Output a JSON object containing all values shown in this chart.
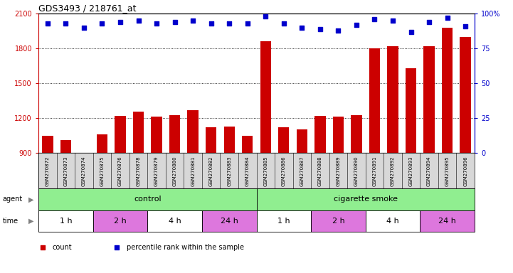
{
  "title": "GDS3493 / 218761_at",
  "samples": [
    "GSM270872",
    "GSM270873",
    "GSM270874",
    "GSM270875",
    "GSM270876",
    "GSM270878",
    "GSM270879",
    "GSM270880",
    "GSM270881",
    "GSM270882",
    "GSM270883",
    "GSM270884",
    "GSM270885",
    "GSM270886",
    "GSM270887",
    "GSM270888",
    "GSM270889",
    "GSM270890",
    "GSM270891",
    "GSM270892",
    "GSM270893",
    "GSM270894",
    "GSM270895",
    "GSM270896"
  ],
  "counts": [
    1050,
    1010,
    870,
    1060,
    1220,
    1255,
    1210,
    1225,
    1270,
    1120,
    1130,
    1050,
    1860,
    1120,
    1100,
    1220,
    1210,
    1225,
    1800,
    1820,
    1630,
    1820,
    1980,
    1900
  ],
  "percentiles": [
    93,
    93,
    90,
    93,
    94,
    95,
    93,
    94,
    95,
    93,
    93,
    93,
    98,
    93,
    90,
    89,
    88,
    92,
    96,
    95,
    87,
    94,
    97,
    91
  ],
  "bar_color": "#cc0000",
  "dot_color": "#0000cc",
  "ylim_left": [
    900,
    2100
  ],
  "ylim_right": [
    0,
    100
  ],
  "yticks_left": [
    900,
    1200,
    1500,
    1800,
    2100
  ],
  "yticks_right": [
    0,
    25,
    50,
    75,
    100
  ],
  "ytick_labels_right": [
    "0",
    "25",
    "50",
    "75",
    "100%"
  ],
  "time_groups": [
    {
      "label": "1 h",
      "start": 0,
      "end": 2,
      "color": "#ffffff"
    },
    {
      "label": "2 h",
      "start": 3,
      "end": 5,
      "color": "#dd77dd"
    },
    {
      "label": "4 h",
      "start": 6,
      "end": 8,
      "color": "#ffffff"
    },
    {
      "label": "24 h",
      "start": 9,
      "end": 11,
      "color": "#dd77dd"
    },
    {
      "label": "1 h",
      "start": 12,
      "end": 14,
      "color": "#ffffff"
    },
    {
      "label": "2 h",
      "start": 15,
      "end": 17,
      "color": "#dd77dd"
    },
    {
      "label": "4 h",
      "start": 18,
      "end": 20,
      "color": "#ffffff"
    },
    {
      "label": "24 h",
      "start": 21,
      "end": 23,
      "color": "#dd77dd"
    }
  ],
  "agent_groups": [
    {
      "label": "control",
      "start": 0,
      "end": 11,
      "color": "#90ee90"
    },
    {
      "label": "cigarette smoke",
      "start": 12,
      "end": 23,
      "color": "#90ee90"
    }
  ],
  "legend_items": [
    {
      "color": "#cc0000",
      "marker": "s",
      "label": "count"
    },
    {
      "color": "#0000cc",
      "marker": "s",
      "label": "percentile rank within the sample"
    }
  ]
}
